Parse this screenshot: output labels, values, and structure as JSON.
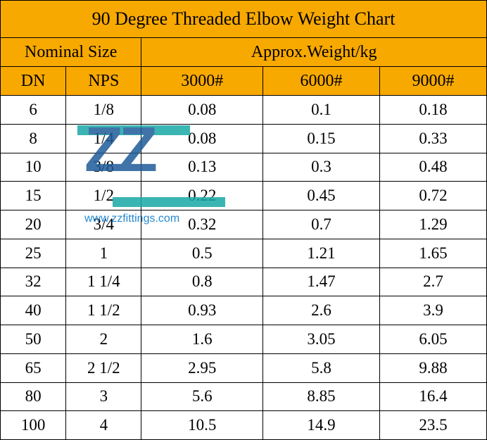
{
  "title": "90 Degree Threaded Elbow Weight Chart",
  "group_headers": {
    "nominal_size": "Nominal Size",
    "weight": "Approx.Weight/kg"
  },
  "columns": [
    "DN",
    "NPS",
    "3000#",
    "6000#",
    "9000#"
  ],
  "column_widths_pct": [
    13.5,
    15.5,
    25,
    24,
    22
  ],
  "rows": [
    [
      "6",
      "1/8",
      "0.08",
      "0.1",
      "0.18"
    ],
    [
      "8",
      "1/4",
      "0.08",
      "0.15",
      "0.33"
    ],
    [
      "10",
      "3/8",
      "0.13",
      "0.3",
      "0.48"
    ],
    [
      "15",
      "1/2",
      "0.22",
      "0.45",
      "0.72"
    ],
    [
      "20",
      "3/4",
      "0.32",
      "0.7",
      "1.29"
    ],
    [
      "25",
      "1",
      "0.5",
      "1.21",
      "1.65"
    ],
    [
      "32",
      "1 1/4",
      "0.8",
      "1.47",
      "2.7"
    ],
    [
      "40",
      "1 1/2",
      "0.93",
      "2.6",
      "3.9"
    ],
    [
      "50",
      "2",
      "1.6",
      "3.05",
      "6.05"
    ],
    [
      "65",
      "2 1/2",
      "2.95",
      "5.8",
      "9.88"
    ],
    [
      "80",
      "3",
      "5.6",
      "8.85",
      "16.4"
    ],
    [
      "100",
      "4",
      "10.5",
      "14.9",
      "23.5"
    ]
  ],
  "colors": {
    "header_bg": "#f8a900",
    "body_bg": "#ffffff",
    "border": "#000000",
    "text": "#000000",
    "watermark_logo": "#1f5c99",
    "watermark_bar": "#18a9a6",
    "watermark_url": "#0074c8"
  },
  "watermark": {
    "text": "ZZ",
    "url": "www.zzfittings.com"
  }
}
